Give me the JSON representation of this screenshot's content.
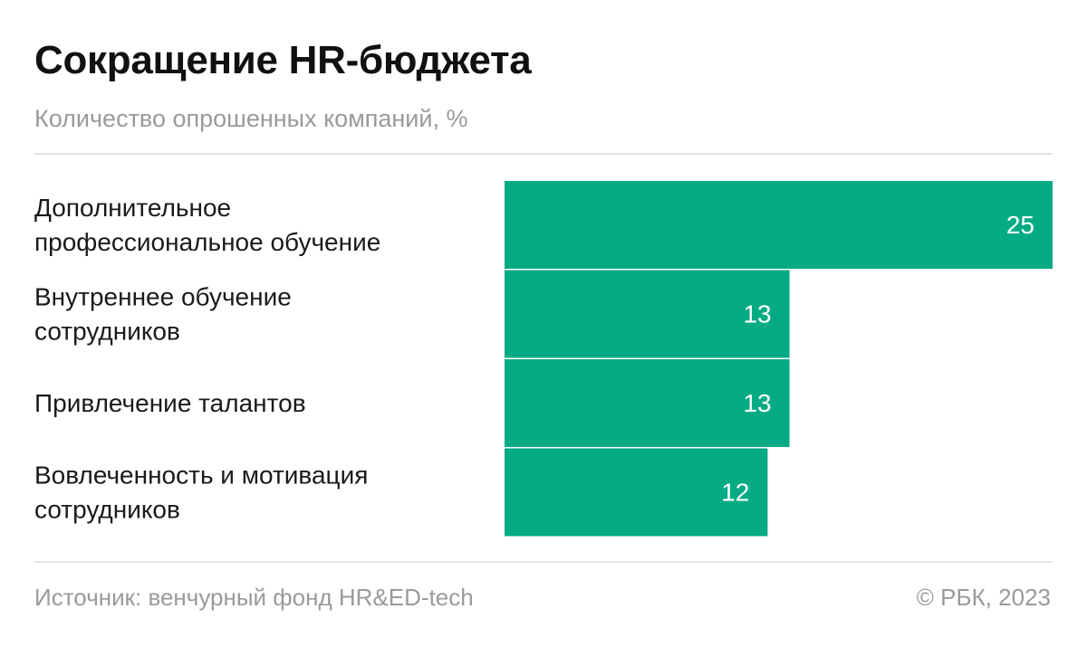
{
  "header": {
    "title": "Сокращение HR-бюджета",
    "subtitle": "Количество опрошенных компаний, %"
  },
  "footer": {
    "source": "Источник: венчурный фонд HR&ED-tech",
    "copyright": "© РБК, 2023"
  },
  "colors": {
    "bar": "#06ab84",
    "text": "#1a1a1a",
    "muted": "#9a9a9a",
    "rule": "#e3e3e3"
  },
  "chart_data": {
    "type": "bar",
    "orientation": "horizontal",
    "title": "Сокращение HR-бюджета",
    "subtitle": "Количество опрошенных компаний, %",
    "categories": [
      [
        "Дополнительное",
        "профессиональное обучение"
      ],
      [
        "Внутреннее обучение",
        "сотрудников"
      ],
      [
        "Привлечение талантов"
      ],
      [
        "Вовлеченность и мотивация",
        "сотрудников"
      ]
    ],
    "values": [
      25,
      13,
      13,
      12
    ],
    "data_labels": [
      "25",
      "13",
      "13",
      "12"
    ],
    "xlim": [
      0,
      25
    ],
    "grid": false,
    "legend": "none"
  }
}
